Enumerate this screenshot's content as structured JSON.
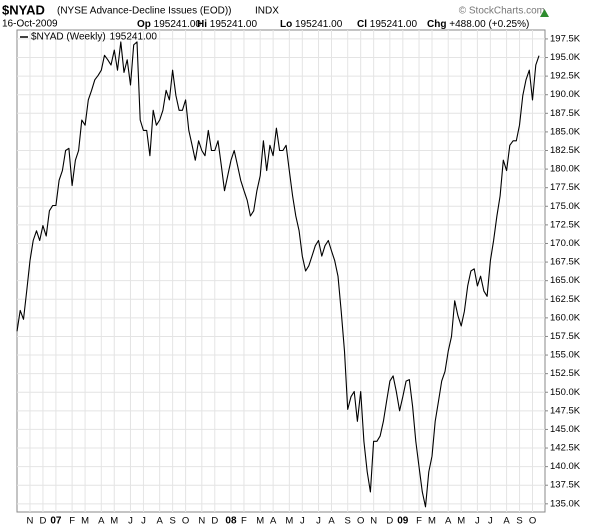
{
  "header": {
    "symbol": "$NYAD",
    "name": "(NYSE Advance-Decline Issues (EOD))",
    "exchange": "INDX",
    "source": "© StockCharts.com",
    "date": "16-Oct-2009",
    "quote": [
      {
        "label": "Op",
        "value": "195241.00"
      },
      {
        "label": "Hi",
        "value": "195241.00"
      },
      {
        "label": "Lo",
        "value": "195241.00"
      },
      {
        "label": "Cl",
        "value": "195241.00"
      },
      {
        "label": "Chg",
        "value": "+488.00 (+0.25%)"
      }
    ]
  },
  "chart_data": {
    "type": "line",
    "grid": true,
    "legend_value": "195241.00",
    "categories": [
      null,
      null,
      null,
      null,
      "N",
      null,
      null,
      null,
      "D",
      null,
      null,
      null,
      "07",
      null,
      null,
      null,
      null,
      "F",
      null,
      null,
      null,
      "M",
      null,
      null,
      null,
      null,
      "A",
      null,
      null,
      null,
      "M",
      null,
      null,
      null,
      null,
      "J",
      null,
      null,
      null,
      "J",
      null,
      null,
      null,
      null,
      "A",
      null,
      null,
      null,
      "S",
      null,
      null,
      null,
      "O",
      null,
      null,
      null,
      null,
      "N",
      null,
      null,
      null,
      "D",
      null,
      null,
      null,
      null,
      "08",
      null,
      null,
      null,
      "F",
      null,
      null,
      null,
      null,
      "M",
      null,
      null,
      null,
      "A",
      null,
      null,
      null,
      null,
      "M",
      null,
      null,
      null,
      "J",
      null,
      null,
      null,
      null,
      "J",
      null,
      null,
      null,
      "A",
      null,
      null,
      null,
      null,
      "S",
      null,
      null,
      null,
      "O",
      null,
      null,
      null,
      "N",
      null,
      null,
      null,
      null,
      "D",
      null,
      null,
      null,
      "09",
      null,
      null,
      null,
      null,
      "F",
      null,
      null,
      null,
      "M",
      null,
      null,
      null,
      null,
      "A",
      null,
      null,
      null,
      "M",
      null,
      null,
      null,
      null,
      "J",
      null,
      null,
      null,
      "J",
      null,
      null,
      null,
      null,
      "A",
      null,
      null,
      null,
      "S",
      null,
      null,
      null,
      "O",
      null,
      null
    ],
    "series": [
      {
        "name": "$NYAD (Weekly)",
        "color": "#000000",
        "values": [
          158200,
          161000,
          159800,
          163600,
          167700,
          170400,
          171700,
          170400,
          172400,
          171000,
          174400,
          175100,
          175100,
          178500,
          179800,
          182500,
          182800,
          177800,
          181200,
          182500,
          186600,
          185900,
          189300,
          190600,
          192000,
          192600,
          193300,
          195300,
          194700,
          194000,
          196000,
          193300,
          197100,
          193000,
          194700,
          191300,
          196700,
          197100,
          186600,
          185200,
          185200,
          181800,
          187900,
          185900,
          186600,
          187900,
          190600,
          189300,
          193300,
          189900,
          187900,
          187900,
          189300,
          185200,
          183200,
          181200,
          183800,
          182500,
          181800,
          185200,
          182500,
          182500,
          183800,
          180500,
          177100,
          179100,
          181200,
          182500,
          180500,
          178500,
          177100,
          175800,
          173700,
          174400,
          177100,
          179100,
          183800,
          179800,
          183200,
          181800,
          185500,
          182500,
          182500,
          183200,
          179800,
          176400,
          173700,
          171700,
          168300,
          166300,
          167000,
          168300,
          169700,
          170400,
          168300,
          169700,
          170400,
          169000,
          167700,
          165600,
          160900,
          155500,
          147700,
          149400,
          150100,
          146100,
          150100,
          143400,
          139300,
          136600,
          143400,
          143400,
          144100,
          146100,
          148800,
          151500,
          152200,
          150100,
          147500,
          149400,
          151500,
          151700,
          148100,
          143400,
          140000,
          136600,
          134600,
          139300,
          141400,
          146100,
          148800,
          151500,
          152800,
          155500,
          157500,
          162300,
          160300,
          158900,
          160900,
          164300,
          166300,
          166600,
          164300,
          165600,
          163600,
          162900,
          167700,
          170400,
          173700,
          176400,
          181200,
          179800,
          183200,
          183800,
          183800,
          185900,
          189900,
          192000,
          193300,
          189300,
          194000,
          195241
        ]
      }
    ],
    "ylim": [
      133900,
      198700
    ],
    "yticks": [
      {
        "value": 135000,
        "label": "135.0K"
      },
      {
        "value": 137500,
        "label": "137.5K"
      },
      {
        "value": 140000,
        "label": "140.0K"
      },
      {
        "value": 142500,
        "label": "142.5K"
      },
      {
        "value": 145000,
        "label": "145.0K"
      },
      {
        "value": 147500,
        "label": "147.5K"
      },
      {
        "value": 150000,
        "label": "150.0K"
      },
      {
        "value": 152500,
        "label": "152.5K"
      },
      {
        "value": 155000,
        "label": "155.0K"
      },
      {
        "value": 157500,
        "label": "157.5K"
      },
      {
        "value": 160000,
        "label": "160.0K"
      },
      {
        "value": 162500,
        "label": "162.5K"
      },
      {
        "value": 165000,
        "label": "165.0K"
      },
      {
        "value": 167500,
        "label": "167.5K"
      },
      {
        "value": 170000,
        "label": "170.0K"
      },
      {
        "value": 172500,
        "label": "172.5K"
      },
      {
        "value": 175000,
        "label": "175.0K"
      },
      {
        "value": 177500,
        "label": "177.5K"
      },
      {
        "value": 180000,
        "label": "180.0K"
      },
      {
        "value": 182500,
        "label": "182.5K"
      },
      {
        "value": 185000,
        "label": "185.0K"
      },
      {
        "value": 187500,
        "label": "187.5K"
      },
      {
        "value": 190000,
        "label": "190.0K"
      },
      {
        "value": 192500,
        "label": "192.5K"
      },
      {
        "value": 195000,
        "label": "195.0K"
      },
      {
        "value": 197500,
        "label": "197.5K"
      }
    ]
  }
}
